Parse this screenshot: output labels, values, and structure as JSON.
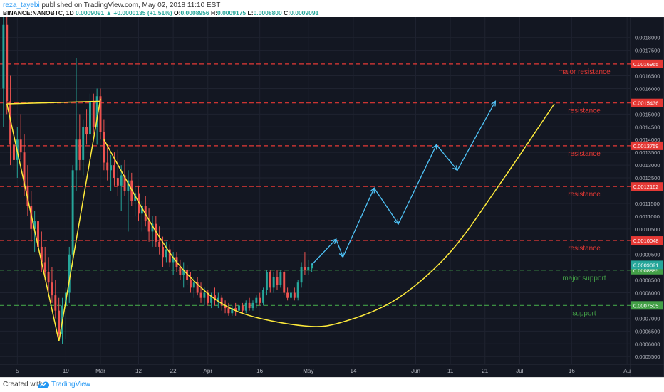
{
  "header": {
    "author": "reza_tayebi",
    "published_text": "published on TradingView.com, May 02, 2018 11:10 EST",
    "symbol": "BINANCE:NANOBTC, 1D",
    "last": "0.0009091",
    "arrow": "▲",
    "change": "+0.0000135 (+1.51%)",
    "o_label": "O:",
    "o": "0.0008956",
    "h_label": "H:",
    "h": "0.0009175",
    "l_label": "L:",
    "l": "0.0008800",
    "c_label": "C:",
    "c": "0.0009091"
  },
  "footer": {
    "created_with": "Created with",
    "brand": "TradingView"
  },
  "colors": {
    "background": "#131722",
    "grid": "#1f2330",
    "up": "#26a69a",
    "down": "#ef5350",
    "resistance": "#e53935",
    "support": "#43a047",
    "yellow": "#ffeb3b",
    "cyan": "#4fc3f7"
  },
  "chart_data": {
    "type": "candlestick",
    "y_axis": {
      "min": 0.00052,
      "max": 0.00188,
      "position": "right"
    },
    "y_ticks": [
      "0.0018000",
      "0.0017500",
      "0.0016500",
      "0.0016000",
      "0.0015000",
      "0.0014500",
      "0.0014000",
      "0.0013500",
      "0.0013000",
      "0.0012500",
      "0.0011500",
      "0.0011000",
      "0.0010500",
      "0.0009500",
      "0.0008500",
      "0.0008000",
      "0.0007000",
      "0.0006500",
      "0.0006000",
      "0.0005500"
    ],
    "x_ticks": [
      {
        "label": "5",
        "t": 5
      },
      {
        "label": "19",
        "t": 19
      },
      {
        "label": "Mar",
        "t": 29
      },
      {
        "label": "12",
        "t": 40
      },
      {
        "label": "22",
        "t": 50
      },
      {
        "label": "Apr",
        "t": 60
      },
      {
        "label": "16",
        "t": 75
      },
      {
        "label": "May",
        "t": 89
      },
      {
        "label": "14",
        "t": 102
      },
      {
        "label": "Jun",
        "t": 120
      },
      {
        "label": "11",
        "t": 130
      },
      {
        "label": "21",
        "t": 140
      },
      {
        "label": "Jul",
        "t": 150
      },
      {
        "label": "16",
        "t": 165
      },
      {
        "label": "Au",
        "t": 181
      }
    ],
    "x_range": [
      0,
      182
    ],
    "levels": [
      {
        "price": 0.0016965,
        "label": "major resistance",
        "tag": "0.0016965",
        "kind": "resistance"
      },
      {
        "price": 0.0015436,
        "label": "resistance",
        "tag": "0.0015436",
        "kind": "resistance"
      },
      {
        "price": 0.0013759,
        "label": "resistance",
        "tag": "0.0013759",
        "kind": "resistance"
      },
      {
        "price": 0.0012162,
        "label": "resistance",
        "tag": "0.0012162",
        "kind": "resistance"
      },
      {
        "price": 0.0010048,
        "label": "resistance",
        "tag": "0.0010048",
        "kind": "resistance"
      },
      {
        "price": 0.0008885,
        "label": "major support",
        "tag": "0.0008885",
        "kind": "support"
      },
      {
        "price": 0.0007505,
        "label": "support",
        "tag": "0.0007505",
        "kind": "support"
      }
    ],
    "last_price_tag": "0.0009091",
    "candles": [
      {
        "t": 1,
        "o": 0.0016,
        "h": 0.00188,
        "l": 0.00145,
        "c": 0.00185
      },
      {
        "t": 2,
        "o": 0.00185,
        "h": 0.00188,
        "l": 0.0015,
        "c": 0.00155
      },
      {
        "t": 3,
        "o": 0.00155,
        "h": 0.00165,
        "l": 0.0013,
        "c": 0.00138
      },
      {
        "t": 4,
        "o": 0.00138,
        "h": 0.00148,
        "l": 0.00128,
        "c": 0.00132
      },
      {
        "t": 5,
        "o": 0.00132,
        "h": 0.00145,
        "l": 0.00125,
        "c": 0.0014
      },
      {
        "t": 6,
        "o": 0.0014,
        "h": 0.0015,
        "l": 0.00132,
        "c": 0.00135
      },
      {
        "t": 7,
        "o": 0.00135,
        "h": 0.00142,
        "l": 0.00118,
        "c": 0.00122
      },
      {
        "t": 8,
        "o": 0.00122,
        "h": 0.0013,
        "l": 0.0011,
        "c": 0.00114
      },
      {
        "t": 9,
        "o": 0.00114,
        "h": 0.0012,
        "l": 0.001,
        "c": 0.00105
      },
      {
        "t": 10,
        "o": 0.00105,
        "h": 0.00112,
        "l": 0.00096,
        "c": 0.00108
      },
      {
        "t": 11,
        "o": 0.00108,
        "h": 0.00112,
        "l": 0.00095,
        "c": 0.00098
      },
      {
        "t": 12,
        "o": 0.00098,
        "h": 0.00104,
        "l": 0.00088,
        "c": 0.00092
      },
      {
        "t": 13,
        "o": 0.00092,
        "h": 0.00098,
        "l": 0.00085,
        "c": 0.00088
      },
      {
        "t": 14,
        "o": 0.00088,
        "h": 0.00094,
        "l": 0.0008,
        "c": 0.00084
      },
      {
        "t": 15,
        "o": 0.00084,
        "h": 0.0009,
        "l": 0.00076,
        "c": 0.00079
      },
      {
        "t": 16,
        "o": 0.00079,
        "h": 0.00085,
        "l": 0.0007,
        "c": 0.00073
      },
      {
        "t": 17,
        "o": 0.00073,
        "h": 0.00078,
        "l": 0.00061,
        "c": 0.00064
      },
      {
        "t": 18,
        "o": 0.00064,
        "h": 0.00078,
        "l": 0.0006,
        "c": 0.00075
      },
      {
        "t": 19,
        "o": 0.00075,
        "h": 0.00082,
        "l": 0.00062,
        "c": 0.0008
      },
      {
        "t": 20,
        "o": 0.0008,
        "h": 0.00098,
        "l": 0.00076,
        "c": 0.00095
      },
      {
        "t": 21,
        "o": 0.00095,
        "h": 0.0013,
        "l": 0.0009,
        "c": 0.00128
      },
      {
        "t": 22,
        "o": 0.00128,
        "h": 0.00172,
        "l": 0.0012,
        "c": 0.0014
      },
      {
        "t": 23,
        "o": 0.0014,
        "h": 0.0015,
        "l": 0.00128,
        "c": 0.00132
      },
      {
        "t": 24,
        "o": 0.00132,
        "h": 0.00148,
        "l": 0.00126,
        "c": 0.00145
      },
      {
        "t": 25,
        "o": 0.00145,
        "h": 0.00152,
        "l": 0.00138,
        "c": 0.00142
      },
      {
        "t": 26,
        "o": 0.00142,
        "h": 0.00158,
        "l": 0.0014,
        "c": 0.00155
      },
      {
        "t": 27,
        "o": 0.00155,
        "h": 0.00158,
        "l": 0.00142,
        "c": 0.00145
      },
      {
        "t": 28,
        "o": 0.00145,
        "h": 0.0016,
        "l": 0.00138,
        "c": 0.00157
      },
      {
        "t": 29,
        "o": 0.00157,
        "h": 0.0016,
        "l": 0.0014,
        "c": 0.00143
      },
      {
        "t": 30,
        "o": 0.00143,
        "h": 0.00148,
        "l": 0.00128,
        "c": 0.00131
      },
      {
        "t": 31,
        "o": 0.00131,
        "h": 0.00138,
        "l": 0.00124,
        "c": 0.00128
      },
      {
        "t": 32,
        "o": 0.00128,
        "h": 0.00134,
        "l": 0.0012,
        "c": 0.0013
      },
      {
        "t": 33,
        "o": 0.0013,
        "h": 0.00135,
        "l": 0.00122,
        "c": 0.00125
      },
      {
        "t": 34,
        "o": 0.00125,
        "h": 0.00136,
        "l": 0.00118,
        "c": 0.00122
      },
      {
        "t": 35,
        "o": 0.00122,
        "h": 0.0013,
        "l": 0.00112,
        "c": 0.00126
      },
      {
        "t": 36,
        "o": 0.00126,
        "h": 0.00132,
        "l": 0.00118,
        "c": 0.0012
      },
      {
        "t": 37,
        "o": 0.0012,
        "h": 0.00128,
        "l": 0.00104,
        "c": 0.00124
      },
      {
        "t": 38,
        "o": 0.00124,
        "h": 0.00127,
        "l": 0.00114,
        "c": 0.00116
      },
      {
        "t": 39,
        "o": 0.00116,
        "h": 0.00122,
        "l": 0.0011,
        "c": 0.00119
      },
      {
        "t": 40,
        "o": 0.00119,
        "h": 0.00122,
        "l": 0.00108,
        "c": 0.00111
      },
      {
        "t": 41,
        "o": 0.00111,
        "h": 0.00116,
        "l": 0.00104,
        "c": 0.00114
      },
      {
        "t": 42,
        "o": 0.00114,
        "h": 0.00118,
        "l": 0.00106,
        "c": 0.00108
      },
      {
        "t": 43,
        "o": 0.00108,
        "h": 0.00113,
        "l": 0.001,
        "c": 0.00104
      },
      {
        "t": 44,
        "o": 0.00104,
        "h": 0.0011,
        "l": 0.00098,
        "c": 0.00107
      },
      {
        "t": 45,
        "o": 0.00107,
        "h": 0.0011,
        "l": 0.00098,
        "c": 0.001
      },
      {
        "t": 46,
        "o": 0.001,
        "h": 0.00106,
        "l": 0.00095,
        "c": 0.00098
      },
      {
        "t": 47,
        "o": 0.00098,
        "h": 0.00102,
        "l": 0.0009,
        "c": 0.00094
      },
      {
        "t": 48,
        "o": 0.00094,
        "h": 0.001,
        "l": 0.00092,
        "c": 0.00097
      },
      {
        "t": 49,
        "o": 0.00097,
        "h": 0.00099,
        "l": 0.0009,
        "c": 0.00092
      },
      {
        "t": 50,
        "o": 0.00092,
        "h": 0.00096,
        "l": 0.00087,
        "c": 0.00094
      },
      {
        "t": 51,
        "o": 0.00094,
        "h": 0.00096,
        "l": 0.00088,
        "c": 0.0009
      },
      {
        "t": 52,
        "o": 0.0009,
        "h": 0.00093,
        "l": 0.00085,
        "c": 0.00087
      },
      {
        "t": 53,
        "o": 0.00087,
        "h": 0.00092,
        "l": 0.00082,
        "c": 0.00089
      },
      {
        "t": 54,
        "o": 0.00089,
        "h": 0.00091,
        "l": 0.00083,
        "c": 0.00085
      },
      {
        "t": 55,
        "o": 0.00085,
        "h": 0.00088,
        "l": 0.0008,
        "c": 0.00082
      },
      {
        "t": 56,
        "o": 0.00082,
        "h": 0.00086,
        "l": 0.00078,
        "c": 0.00084
      },
      {
        "t": 57,
        "o": 0.00084,
        "h": 0.00086,
        "l": 0.00079,
        "c": 0.0008
      },
      {
        "t": 58,
        "o": 0.0008,
        "h": 0.00084,
        "l": 0.00076,
        "c": 0.00078
      },
      {
        "t": 59,
        "o": 0.00078,
        "h": 0.00082,
        "l": 0.00075,
        "c": 0.0008
      },
      {
        "t": 60,
        "o": 0.0008,
        "h": 0.00081,
        "l": 0.00075,
        "c": 0.00076
      },
      {
        "t": 61,
        "o": 0.00076,
        "h": 0.0008,
        "l": 0.00074,
        "c": 0.00079
      },
      {
        "t": 62,
        "o": 0.00079,
        "h": 0.00082,
        "l": 0.00075,
        "c": 0.00077
      },
      {
        "t": 63,
        "o": 0.00077,
        "h": 0.0008,
        "l": 0.00074,
        "c": 0.00078
      },
      {
        "t": 64,
        "o": 0.00078,
        "h": 0.00079,
        "l": 0.00073,
        "c": 0.00075
      },
      {
        "t": 65,
        "o": 0.00075,
        "h": 0.00077,
        "l": 0.00072,
        "c": 0.00074
      },
      {
        "t": 66,
        "o": 0.00074,
        "h": 0.00076,
        "l": 0.00071,
        "c": 0.00072
      },
      {
        "t": 67,
        "o": 0.00072,
        "h": 0.00075,
        "l": 0.00071,
        "c": 0.00074
      },
      {
        "t": 68,
        "o": 0.00074,
        "h": 0.00076,
        "l": 0.00071,
        "c": 0.00073
      },
      {
        "t": 69,
        "o": 0.00073,
        "h": 0.00076,
        "l": 0.00072,
        "c": 0.00075
      },
      {
        "t": 70,
        "o": 0.00075,
        "h": 0.00076,
        "l": 0.00072,
        "c": 0.00073
      },
      {
        "t": 71,
        "o": 0.00073,
        "h": 0.00077,
        "l": 0.00072,
        "c": 0.00076
      },
      {
        "t": 72,
        "o": 0.00076,
        "h": 0.00078,
        "l": 0.00073,
        "c": 0.00074
      },
      {
        "t": 73,
        "o": 0.00074,
        "h": 0.00077,
        "l": 0.00073,
        "c": 0.00076
      },
      {
        "t": 74,
        "o": 0.00076,
        "h": 0.00079,
        "l": 0.00074,
        "c": 0.00078
      },
      {
        "t": 75,
        "o": 0.00078,
        "h": 0.0008,
        "l": 0.00075,
        "c": 0.00076
      },
      {
        "t": 76,
        "o": 0.00076,
        "h": 0.00082,
        "l": 0.00075,
        "c": 0.00081
      },
      {
        "t": 77,
        "o": 0.00081,
        "h": 0.00089,
        "l": 0.00079,
        "c": 0.00088
      },
      {
        "t": 78,
        "o": 0.00088,
        "h": 0.00089,
        "l": 0.0008,
        "c": 0.00082
      },
      {
        "t": 79,
        "o": 0.00082,
        "h": 0.00088,
        "l": 0.0008,
        "c": 0.00086
      },
      {
        "t": 80,
        "o": 0.00086,
        "h": 0.00089,
        "l": 0.00081,
        "c": 0.00083
      },
      {
        "t": 81,
        "o": 0.00083,
        "h": 0.00089,
        "l": 0.00082,
        "c": 0.00088
      },
      {
        "t": 82,
        "o": 0.00088,
        "h": 0.00089,
        "l": 0.00079,
        "c": 0.0008
      },
      {
        "t": 83,
        "o": 0.0008,
        "h": 0.00082,
        "l": 0.00077,
        "c": 0.00078
      },
      {
        "t": 84,
        "o": 0.00078,
        "h": 0.00081,
        "l": 0.00077,
        "c": 0.0008
      },
      {
        "t": 85,
        "o": 0.0008,
        "h": 0.00082,
        "l": 0.00077,
        "c": 0.00078
      },
      {
        "t": 86,
        "o": 0.00078,
        "h": 0.00085,
        "l": 0.00077,
        "c": 0.00084
      },
      {
        "t": 87,
        "o": 0.00084,
        "h": 0.00092,
        "l": 0.00082,
        "c": 0.0009
      },
      {
        "t": 88,
        "o": 0.0009,
        "h": 0.00096,
        "l": 0.00087,
        "c": 0.00089
      },
      {
        "t": 89,
        "o": 0.00089,
        "h": 0.00093,
        "l": 0.00087,
        "c": 0.0009
      },
      {
        "t": 90,
        "o": 0.0008956,
        "h": 0.0009175,
        "l": 0.00088,
        "c": 0.0009091
      }
    ],
    "drawings": {
      "yellow_v": [
        [
          2,
          0.00154
        ],
        [
          17,
          0.00061
        ],
        [
          29,
          0.00156
        ]
      ],
      "yellow_top": [
        [
          2,
          0.00154
        ],
        [
          29,
          0.00155
        ]
      ],
      "cup_curve": [
        [
          30,
          0.0014
        ],
        [
          45,
          0.00104
        ],
        [
          55,
          0.00086
        ],
        [
          68,
          0.00073
        ],
        [
          88,
          0.00067
        ],
        [
          100,
          0.00069
        ],
        [
          115,
          0.00078
        ],
        [
          130,
          0.00096
        ],
        [
          145,
          0.00124
        ],
        [
          160,
          0.00154
        ]
      ],
      "projection": [
        [
          90,
          0.00091
        ],
        [
          97,
          0.00101
        ],
        [
          99,
          0.00094
        ],
        [
          108,
          0.00121
        ],
        [
          115,
          0.00107
        ],
        [
          126,
          0.00138
        ],
        [
          132,
          0.00128
        ],
        [
          143,
          0.00155
        ]
      ]
    }
  }
}
